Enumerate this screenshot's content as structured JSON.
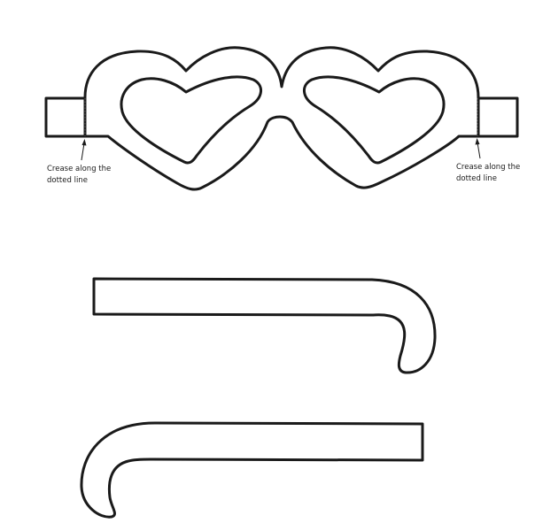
{
  "annotations": {
    "left": {
      "line1": "Crease along the",
      "line2": "dotted line"
    },
    "right": {
      "line1": "Crease along the",
      "line2": "dotted line"
    }
  },
  "colors": {
    "outline": "#1a1a1a",
    "paper": "#ffffff"
  }
}
